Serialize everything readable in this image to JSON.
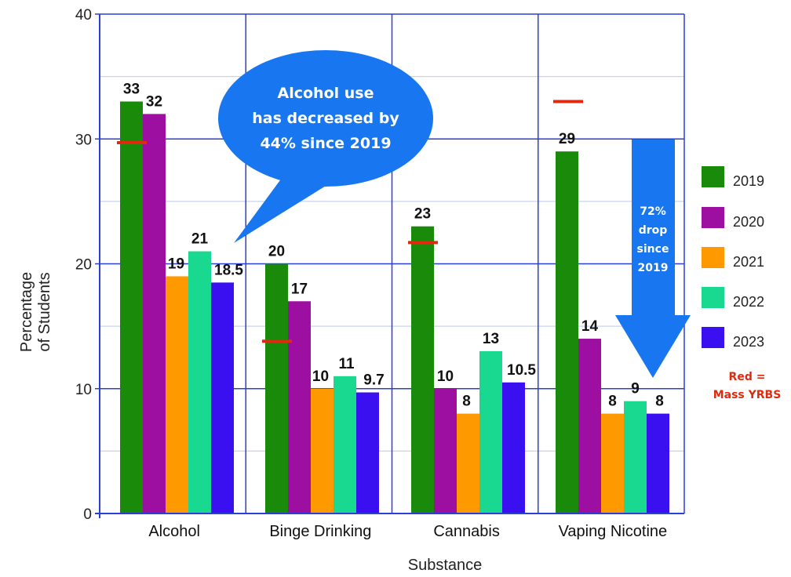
{
  "chart_data": {
    "type": "bar",
    "xlabel": "Substance",
    "ylabel_lines": [
      "Percentage",
      "of Students"
    ],
    "ylim": [
      0,
      40
    ],
    "y_ticks": [
      0,
      10,
      20,
      30,
      40
    ],
    "grid": true,
    "legend_position": "right",
    "categories": [
      "Alcohol",
      "Binge Drinking",
      "Cannabis",
      "Vaping Nicotine"
    ],
    "series": [
      {
        "name": "2019",
        "color": "#1a8a0a",
        "values": [
          33,
          20,
          23,
          29
        ],
        "labels": [
          "33",
          "20",
          "23",
          "29"
        ]
      },
      {
        "name": "2020",
        "color": "#9c0fa0",
        "values": [
          32,
          17,
          10,
          14
        ],
        "labels": [
          "32",
          "17",
          "10",
          "14"
        ]
      },
      {
        "name": "2021",
        "color": "#ff9900",
        "values": [
          19,
          10,
          8,
          8
        ],
        "labels": [
          "19",
          "10",
          "8",
          "8"
        ]
      },
      {
        "name": "2022",
        "color": "#18d98f",
        "values": [
          21,
          11,
          13,
          9
        ],
        "labels": [
          "21",
          "11",
          "13",
          "9"
        ]
      },
      {
        "name": "2023",
        "color": "#3a10f0",
        "values": [
          18.5,
          9.7,
          10.5,
          8
        ],
        "labels": [
          "18.5",
          "9.7",
          "10.5",
          "8"
        ]
      }
    ],
    "reference_markers": {
      "color": "#e02a10",
      "values": [
        29.7,
        13.8,
        21.7,
        33
      ]
    },
    "annotations": {
      "callout_lines": [
        "Alcohol use",
        "has decreased by",
        "44% since 2019"
      ],
      "arrow_lines": [
        "72%",
        "drop",
        "since",
        "2019"
      ],
      "red_note_lines": [
        "Red =",
        "Mass YRBS"
      ]
    }
  },
  "colors": {
    "callout": "#1877f0",
    "arrow": "#1877f0",
    "grid_major": "#2a3fd6",
    "grid_minor": "#c9d3ee"
  }
}
